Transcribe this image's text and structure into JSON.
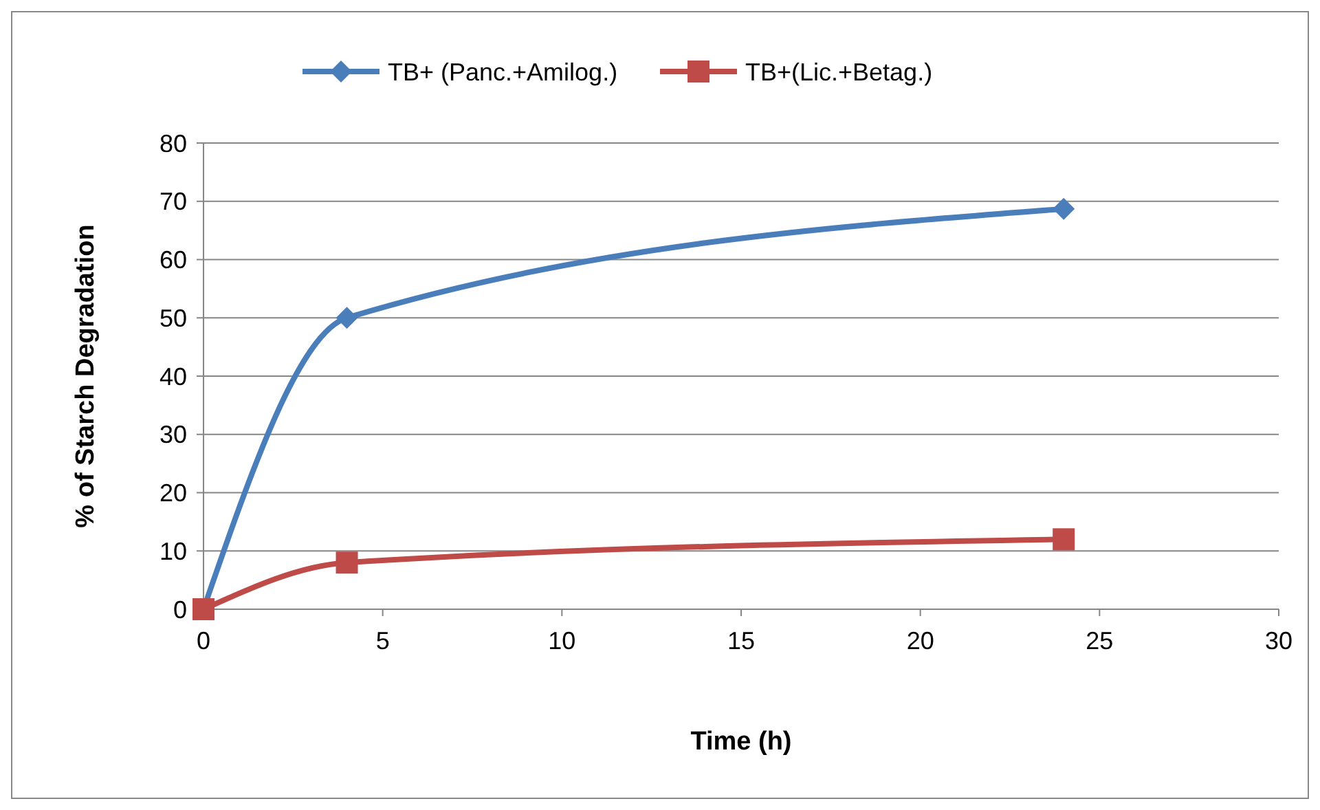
{
  "chart_data": {
    "type": "line",
    "xlabel": "Time (h)",
    "ylabel": "% of Starch Degradation",
    "x": [
      0,
      4,
      24
    ],
    "series": [
      {
        "name": "TB+ (Panc.+Amilog.)",
        "color": "#4a7ebb",
        "marker": "diamond",
        "values": [
          0,
          50,
          68.7
        ]
      },
      {
        "name": "TB+(Lic.+Betag.)",
        "color": "#be4b48",
        "marker": "square",
        "values": [
          0,
          8,
          12
        ]
      }
    ],
    "xlim": [
      0,
      30
    ],
    "xticks": [
      0,
      5,
      10,
      15,
      20,
      25,
      30
    ],
    "ylim": [
      0,
      80
    ],
    "yticks": [
      0,
      10,
      20,
      30,
      40,
      50,
      60,
      70,
      80
    ],
    "grid": "y",
    "legend": "top",
    "line_style": "solid"
  }
}
